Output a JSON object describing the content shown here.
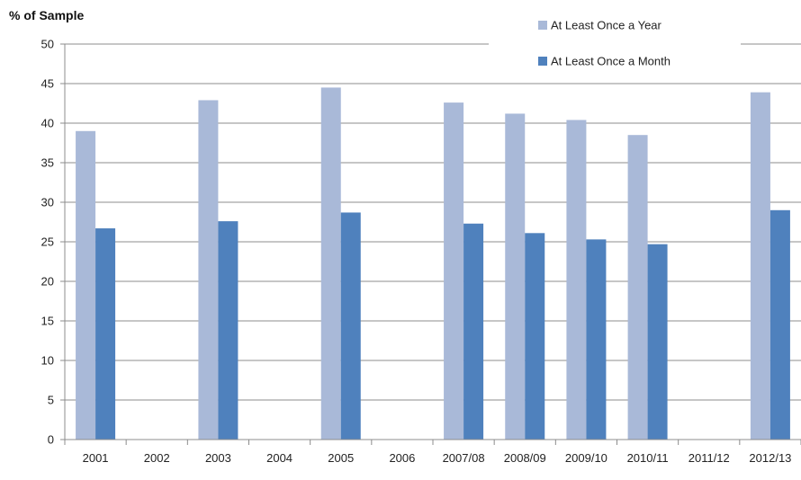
{
  "chart_data": {
    "type": "bar",
    "ylabel": "% of Sample",
    "xlabel": "",
    "ylim": [
      0,
      50
    ],
    "yticks": [
      0,
      5,
      10,
      15,
      20,
      25,
      30,
      35,
      40,
      45,
      50
    ],
    "grid": true,
    "legend_position": "top-right",
    "categories": [
      "2001",
      "2002",
      "2003",
      "2004",
      "2005",
      "2006",
      "2007/08",
      "2008/09",
      "2009/10",
      "2010/11",
      "2011/12",
      "2012/13"
    ],
    "series": [
      {
        "name": "At Least Once a Year",
        "color": "#a9b9d8",
        "values": [
          39.0,
          null,
          42.9,
          null,
          44.5,
          null,
          42.6,
          41.2,
          40.4,
          38.5,
          null,
          43.9
        ]
      },
      {
        "name": "At Least Once a Month",
        "color": "#4f81bd",
        "values": [
          26.7,
          null,
          27.6,
          null,
          28.7,
          null,
          27.3,
          26.1,
          25.3,
          24.7,
          null,
          29.0
        ]
      }
    ]
  }
}
